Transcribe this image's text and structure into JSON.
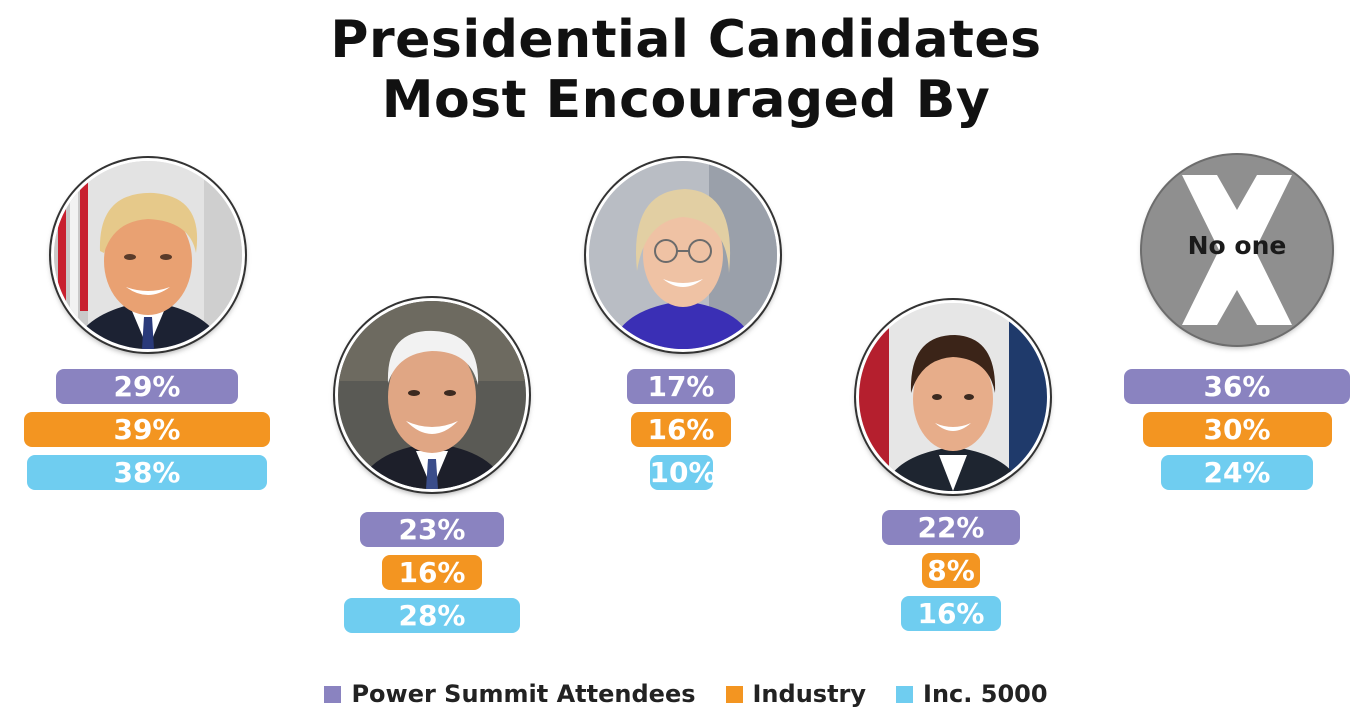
{
  "title": {
    "line1": "Presidential Candidates",
    "line2": "Most Encouraged By"
  },
  "colors": {
    "power_summit": "#8a83c0",
    "industry": "#f39521",
    "inc5000": "#6fcdf0"
  },
  "no_one_label": "No one",
  "legend": [
    {
      "label": "Power Summit Attendees",
      "color": "#8a83c0"
    },
    {
      "label": "Industry",
      "color": "#f39521"
    },
    {
      "label": "Inc. 5000",
      "color": "#6fcdf0"
    }
  ],
  "chart_data": {
    "type": "bar",
    "title": "Presidential Candidates Most Encouraged By",
    "series": [
      {
        "name": "Power Summit Attendees",
        "values": [
          29,
          23,
          17,
          22,
          36
        ],
        "labels": [
          "29%",
          "23%",
          "17%",
          "22%",
          "36%"
        ]
      },
      {
        "name": "Industry",
        "values": [
          39,
          16,
          16,
          8,
          30
        ],
        "labels": [
          "39%",
          "16%",
          "16%",
          "8%",
          "30%"
        ]
      },
      {
        "name": "Inc. 5000",
        "values": [
          38,
          28,
          10,
          16,
          24
        ],
        "labels": [
          "38%",
          "28%",
          "10%",
          "16%",
          "24%"
        ]
      }
    ],
    "unit": "%"
  }
}
